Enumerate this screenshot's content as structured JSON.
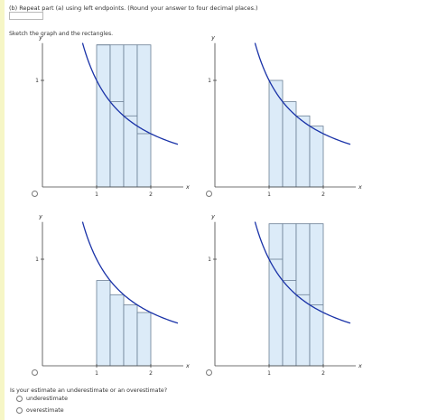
{
  "part_title": "(b) Repeat part (a) using left endpoints. (Round your answer to four decimal places.)",
  "answer_value": "",
  "sketch_label": "Sketch the graph and the rectangles.",
  "graphs": [
    {
      "choice": "A",
      "x_axis_label": "x",
      "y_axis_label": "y",
      "x_ticks": [
        "1",
        "2"
      ],
      "y_ticks": [
        "1"
      ],
      "curve": "y = 1/x",
      "rect_heights": [
        1.333,
        0.8,
        0.667,
        0.5
      ],
      "rect_tops": [
        1.333,
        1.333,
        1.333,
        1.333
      ]
    },
    {
      "choice": "B",
      "x_axis_label": "x",
      "y_axis_label": "y",
      "x_ticks": [
        "1",
        "2"
      ],
      "y_ticks": [
        "1"
      ],
      "curve": "y = 1/x",
      "rect_heights": [
        1.0,
        0.8,
        0.667,
        0.571
      ]
    },
    {
      "choice": "C",
      "x_axis_label": "x",
      "y_axis_label": "y",
      "x_ticks": [
        "1",
        "2"
      ],
      "y_ticks": [
        "1"
      ],
      "curve": "y = 1/x",
      "rect_heights": [
        0.8,
        0.667,
        0.571,
        0.5
      ]
    },
    {
      "choice": "D",
      "x_axis_label": "x",
      "y_axis_label": "y",
      "x_ticks": [
        "1",
        "2"
      ],
      "y_ticks": [
        "1"
      ],
      "curve": "y = 1/x",
      "rect_heights": [
        1.0,
        0.8,
        0.667,
        0.571
      ],
      "rect_tops": [
        1.333,
        1.333,
        1.333,
        1.333
      ]
    }
  ],
  "question": "Is your estimate an underestimate or an overestimate?",
  "options": [
    {
      "label": "underestimate"
    },
    {
      "label": "overestimate"
    }
  ],
  "colors": {
    "curve": "#1a33a8",
    "rect_fill": "#dcebf8",
    "rect_stroke": "#6b7f95",
    "axis": "#444444",
    "sidebar": "#f6f6c6"
  }
}
